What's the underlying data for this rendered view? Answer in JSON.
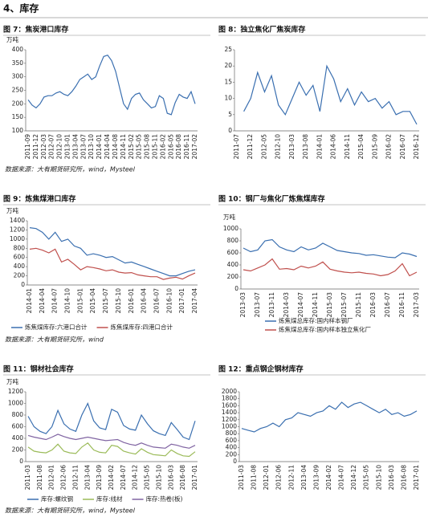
{
  "header": {
    "title": "4、库存"
  },
  "sources": [
    "数据来源：大有期货研究所，wind，Mysteel",
    "数据来源：大有期货研究所，wind",
    "数据来源：大有期货研究所，wind，Mysteel"
  ],
  "chart_data": [
    {
      "type": "line",
      "title": "图 7：焦炭港口库存",
      "y_unit": "万吨",
      "ylim": [
        100,
        400
      ],
      "yticks": [
        100,
        150,
        200,
        250,
        300,
        350,
        400
      ],
      "categories": [
        "2011-09",
        null,
        "2011-12",
        null,
        "2012-03",
        null,
        "2012-07",
        null,
        "2012-10",
        null,
        "2013-01",
        null,
        "2013-04",
        null,
        "2013-07",
        null,
        "2013-10",
        null,
        "2014-01",
        null,
        "2014-04",
        null,
        "2014-08",
        null,
        "2014-11",
        null,
        "2015-02",
        null,
        "2015-05",
        null,
        "2015-08",
        null,
        "2015-11",
        null,
        "2016-02",
        null,
        "2016-05",
        null,
        "2016-08",
        null,
        "2016-11",
        null,
        "2017-02"
      ],
      "color": "#3a6fb0",
      "values": [
        215,
        195,
        185,
        200,
        225,
        230,
        230,
        240,
        245,
        235,
        230,
        245,
        265,
        290,
        300,
        310,
        290,
        300,
        340,
        375,
        380,
        360,
        320,
        260,
        200,
        180,
        220,
        235,
        240,
        215,
        200,
        185,
        190,
        230,
        220,
        165,
        160,
        205,
        235,
        225,
        220,
        245,
        200
      ]
    },
    {
      "type": "line",
      "title": "图 8：独立焦化厂焦炭库存",
      "ylim": [
        0,
        25
      ],
      "yticks": [
        0,
        5,
        10,
        15,
        20,
        25
      ],
      "categories": [
        "2011-07",
        null,
        "2011-12",
        null,
        "2012-05",
        null,
        "2012-10",
        null,
        "2013-03",
        null,
        "2013-08",
        null,
        "2014-01",
        null,
        "2014-06",
        null,
        "2014-11",
        null,
        "2015-04",
        null,
        "2015-09",
        null,
        "2016-02",
        null,
        "2016-07",
        null,
        "2016-12"
      ],
      "color": "#3a6fb0",
      "values": [
        null,
        6,
        10,
        18,
        12,
        17,
        8,
        5,
        10,
        15,
        11,
        14,
        6,
        20,
        16,
        9,
        13,
        8,
        12,
        9,
        10,
        7,
        9,
        5,
        6,
        6,
        2
      ]
    },
    {
      "type": "line",
      "title": "图 9：炼焦煤港口库存",
      "y_unit": "万吨",
      "ylim": [
        0,
        1400
      ],
      "yticks": [
        0,
        200,
        400,
        600,
        800,
        1000,
        1200,
        1400
      ],
      "legend": "bottom",
      "categories": [
        "2014-01",
        null,
        "2014-04",
        null,
        "2014-07",
        null,
        "2014-10",
        null,
        "2015-01",
        null,
        "2015-04",
        null,
        "2015-07",
        null,
        "2015-10",
        null,
        "2016-01",
        null,
        "2016-04",
        null,
        "2016-07",
        null,
        "2016-10",
        null,
        "2017-01",
        null,
        "2017-04"
      ],
      "series": [
        {
          "name": "炼焦煤库存:六港口合计",
          "color": "#3a6fb0",
          "values": [
            1250,
            1230,
            1150,
            1000,
            1150,
            950,
            1000,
            850,
            800,
            650,
            680,
            650,
            600,
            620,
            550,
            480,
            500,
            450,
            400,
            350,
            300,
            250,
            200,
            200,
            250,
            300,
            330
          ]
        },
        {
          "name": "炼焦煤库存:四港口合计",
          "color": "#c0504d",
          "values": [
            780,
            800,
            760,
            700,
            780,
            500,
            560,
            450,
            330,
            400,
            380,
            350,
            310,
            330,
            280,
            260,
            270,
            220,
            200,
            180,
            180,
            120,
            150,
            170,
            130,
            200,
            260
          ]
        }
      ]
    },
    {
      "type": "line",
      "title": "图 10：钢厂与焦化厂炼焦煤库存",
      "y_unit": "万吨",
      "ylim": [
        0,
        1000
      ],
      "yticks": [
        0,
        200,
        400,
        600,
        800,
        1000
      ],
      "legend": "bottom",
      "categories": [
        "2013-03",
        null,
        "2013-07",
        null,
        "2013-11",
        null,
        "2014-03",
        null,
        "2014-07",
        null,
        "2014-11",
        null,
        "2015-03",
        null,
        "2015-07",
        null,
        "2015-11",
        null,
        "2016-03",
        null,
        "2016-07",
        null,
        "2016-11",
        null,
        "2017-03"
      ],
      "series": [
        {
          "name": "炼焦煤总库存:国内样本钢厂",
          "color": "#3a6fb0",
          "values": [
            680,
            620,
            650,
            800,
            820,
            700,
            650,
            620,
            700,
            650,
            680,
            760,
            700,
            640,
            620,
            600,
            590,
            560,
            570,
            550,
            530,
            520,
            600,
            580,
            540
          ]
        },
        {
          "name": "炼焦煤总库存:国内样本独立焦化厂",
          "color": "#c0504d",
          "values": [
            320,
            300,
            350,
            400,
            500,
            330,
            340,
            320,
            380,
            350,
            380,
            450,
            330,
            300,
            280,
            270,
            280,
            260,
            250,
            220,
            240,
            300,
            420,
            220,
            280
          ]
        }
      ]
    },
    {
      "type": "line",
      "title": "图 11：钢材社会库存",
      "y_unit": "万吨",
      "ylim": [
        0,
        1200
      ],
      "yticks": [
        0,
        200,
        400,
        600,
        800,
        1000,
        1200
      ],
      "legend": "bottom",
      "categories": [
        "2011-03",
        null,
        "2011-08",
        null,
        "2012-01",
        null,
        "2012-06",
        null,
        "2012-11",
        null,
        "2013-04",
        null,
        "2013-09",
        null,
        "2014-02",
        null,
        "2014-07",
        null,
        "2014-12",
        null,
        "2015-05",
        null,
        "2015-10",
        null,
        "2016-03",
        null,
        "2016-08",
        null,
        "2017-01"
      ],
      "series": [
        {
          "name": "库存:螺纹钢",
          "color": "#3a6fb0",
          "values": [
            780,
            600,
            520,
            480,
            600,
            880,
            650,
            560,
            520,
            800,
            1000,
            700,
            580,
            550,
            900,
            850,
            620,
            560,
            540,
            800,
            650,
            530,
            480,
            450,
            670,
            550,
            420,
            380,
            700
          ]
        },
        {
          "name": "库存:线材",
          "color": "#9bbb59",
          "values": [
            250,
            180,
            160,
            150,
            200,
            300,
            180,
            150,
            140,
            250,
            320,
            200,
            160,
            150,
            280,
            260,
            180,
            150,
            130,
            220,
            160,
            120,
            110,
            100,
            200,
            140,
            100,
            90,
            170
          ]
        },
        {
          "name": "库存:热卷(板)",
          "color": "#8064a2",
          "values": [
            450,
            420,
            400,
            380,
            420,
            470,
            430,
            400,
            380,
            400,
            420,
            400,
            380,
            360,
            370,
            380,
            330,
            300,
            280,
            320,
            280,
            250,
            240,
            230,
            300,
            280,
            250,
            230,
            280
          ]
        }
      ]
    },
    {
      "type": "line",
      "title": "图 12：重点钢企钢材库存",
      "ylim": [
        0,
        2000
      ],
      "yticks": [
        0,
        200,
        400,
        600,
        800,
        1000,
        1200,
        1400,
        1600,
        1800,
        2000
      ],
      "categories": [
        "2011-03",
        null,
        "2011-08",
        null,
        "2012-01",
        null,
        "2012-06",
        null,
        "2012-11",
        null,
        "2013-04",
        null,
        "2013-09",
        null,
        "2014-02",
        null,
        "2014-07",
        null,
        "2014-12",
        null,
        "2015-05",
        null,
        "2015-10",
        null,
        "2016-03",
        null,
        "2016-08",
        null,
        "2017-01"
      ],
      "color": "#3a6fb0",
      "values": [
        950,
        900,
        850,
        950,
        1000,
        1100,
        1000,
        1200,
        1250,
        1400,
        1350,
        1300,
        1400,
        1450,
        1600,
        1500,
        1700,
        1550,
        1650,
        1700,
        1600,
        1500,
        1400,
        1500,
        1350,
        1400,
        1300,
        1350,
        1450
      ]
    }
  ]
}
